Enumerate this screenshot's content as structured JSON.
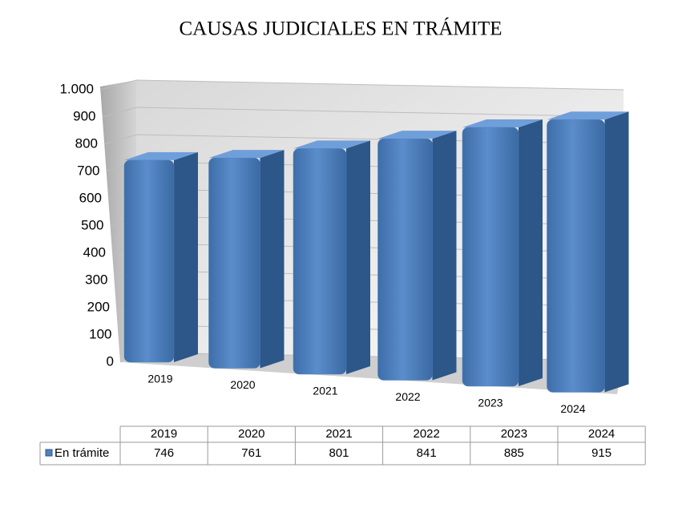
{
  "chart_data": {
    "type": "bar3d",
    "title": "CAUSAS JUDICIALES EN TRÁMITE",
    "categories": [
      "2019",
      "2020",
      "2021",
      "2022",
      "2023",
      "2024"
    ],
    "series": [
      {
        "name": "En trámite",
        "color": "#4f81bd",
        "values": [
          746,
          761,
          801,
          841,
          885,
          915
        ]
      }
    ],
    "ylim": [
      0,
      1000
    ],
    "yticks": [
      0,
      100,
      200,
      300,
      400,
      500,
      600,
      700,
      800,
      900,
      {
        "value": 1000,
        "label": "1.000"
      }
    ],
    "grid": true,
    "data_table": true
  }
}
